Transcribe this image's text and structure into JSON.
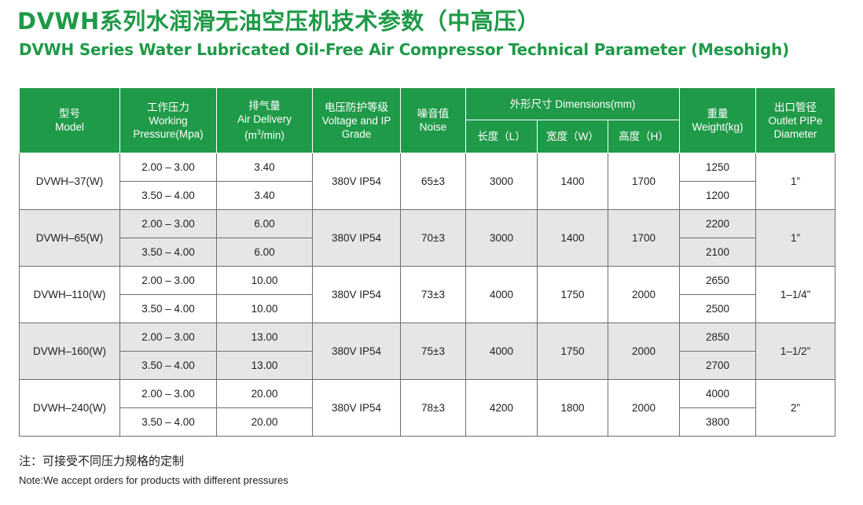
{
  "title": {
    "cn": "DVWH系列水润滑无油空压机技术参数（中高压）",
    "en": "DVWH Series Water Lubricated Oil-Free Air Compressor Technical Parameter (Mesohigh)"
  },
  "header": {
    "model_cn": "型号",
    "model_en": "Model",
    "pressure_cn": "工作压力",
    "pressure_en1": "Working",
    "pressure_en2": "Pressure(Mpa)",
    "delivery_cn": "排气量",
    "delivery_en1": "Air Delivery",
    "delivery_en2_pre": "(m",
    "delivery_en2_sup": "3",
    "delivery_en2_post": "/min)",
    "voltage_cn": "电压防护等级",
    "voltage_en1": "Voltage and IP",
    "voltage_en2": "Grade",
    "noise_cn": "噪音值",
    "noise_en": "Noise",
    "dimensions": "外形尺寸 Dimensions(mm)",
    "length": "长度（L）",
    "width": "宽度（W）",
    "height": "高度（H）",
    "weight_cn": "重量",
    "weight_en": "Weight(kg)",
    "outlet_cn": "出口管径",
    "outlet_en1": "Outlet PIPe",
    "outlet_en2": "Diameter"
  },
  "rows": [
    {
      "model": "DVWH–37(W)",
      "voltage": "380V IP54",
      "noise": "65±3",
      "length": "3000",
      "width": "1400",
      "height": "1700",
      "outlet": "1”",
      "sub": [
        {
          "pressure": "2.00 – 3.00",
          "delivery": "3.40",
          "weight": "1250"
        },
        {
          "pressure": "3.50 – 4.00",
          "delivery": "3.40",
          "weight": "1200"
        }
      ]
    },
    {
      "model": "DVWH–65(W)",
      "voltage": "380V IP54",
      "noise": "70±3",
      "length": "3000",
      "width": "1400",
      "height": "1700",
      "outlet": "1”",
      "sub": [
        {
          "pressure": "2.00 – 3.00",
          "delivery": "6.00",
          "weight": "2200"
        },
        {
          "pressure": "3.50 – 4.00",
          "delivery": "6.00",
          "weight": "2100"
        }
      ]
    },
    {
      "model": "DVWH–110(W)",
      "voltage": "380V IP54",
      "noise": "73±3",
      "length": "4000",
      "width": "1750",
      "height": "2000",
      "outlet": "1–1/4”",
      "sub": [
        {
          "pressure": "2.00 – 3.00",
          "delivery": "10.00",
          "weight": "2650"
        },
        {
          "pressure": "3.50 – 4.00",
          "delivery": "10.00",
          "weight": "2500"
        }
      ]
    },
    {
      "model": "DVWH–160(W)",
      "voltage": "380V IP54",
      "noise": "75±3",
      "length": "4000",
      "width": "1750",
      "height": "2000",
      "outlet": "1–1/2”",
      "sub": [
        {
          "pressure": "2.00 – 3.00",
          "delivery": "13.00",
          "weight": "2850"
        },
        {
          "pressure": "3.50 – 4.00",
          "delivery": "13.00",
          "weight": "2700"
        }
      ]
    },
    {
      "model": "DVWH–240(W)",
      "voltage": "380V IP54",
      "noise": "78±3",
      "length": "4200",
      "width": "1800",
      "height": "2000",
      "outlet": "2”",
      "sub": [
        {
          "pressure": "2.00 – 3.00",
          "delivery": "20.00",
          "weight": "4000"
        },
        {
          "pressure": "3.50 – 4.00",
          "delivery": "20.00",
          "weight": "3800"
        }
      ]
    }
  ],
  "note": {
    "cn": "注：可接受不同压力规格的定制",
    "en": "Note:We accept orders for products with different pressures"
  }
}
